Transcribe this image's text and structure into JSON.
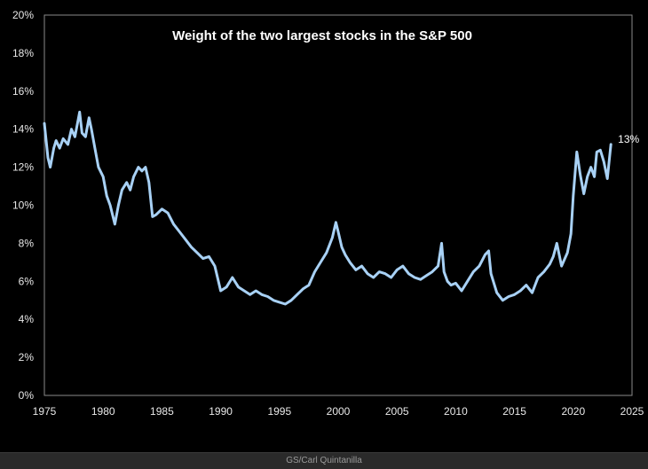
{
  "source_credit": "GS/Carl Quintanilla",
  "colors": {
    "background": "#000000",
    "plot_border": "#8a8a8a",
    "series_line": "#a8d1f5",
    "text": "#ffffff"
  },
  "chart_data": {
    "type": "line",
    "title": "Weight of the two largest stocks in the S&P 500",
    "xlabel": "",
    "ylabel": "",
    "xlim": [
      1975,
      2025
    ],
    "ylim": [
      0,
      20
    ],
    "x_ticks": [
      "1975",
      "1980",
      "1985",
      "1990",
      "1995",
      "2000",
      "2005",
      "2010",
      "2015",
      "2020",
      "2025"
    ],
    "y_ticks": [
      "0%",
      "2%",
      "4%",
      "6%",
      "8%",
      "10%",
      "12%",
      "14%",
      "16%",
      "18%",
      "20%"
    ],
    "grid": false,
    "end_annotation": "13%",
    "series": [
      {
        "x": [
          1975.0,
          1975.3,
          1975.5,
          1975.8,
          1976.0,
          1976.3,
          1976.6,
          1977.0,
          1977.3,
          1977.6,
          1978.0,
          1978.2,
          1978.5,
          1978.8,
          1979.0,
          1979.3,
          1979.6,
          1980.0,
          1980.3,
          1980.6,
          1981.0,
          1981.3,
          1981.6,
          1982.0,
          1982.3,
          1982.6,
          1983.0,
          1983.3,
          1983.6,
          1983.9,
          1984.2,
          1984.5,
          1985.0,
          1985.5,
          1986.0,
          1986.5,
          1987.0,
          1987.5,
          1988.0,
          1988.5,
          1989.0,
          1989.5,
          1990.0,
          1990.5,
          1991.0,
          1991.5,
          1992.0,
          1992.5,
          1993.0,
          1993.5,
          1994.0,
          1994.5,
          1995.0,
          1995.5,
          1996.0,
          1996.5,
          1997.0,
          1997.5,
          1998.0,
          1998.5,
          1999.0,
          1999.5,
          1999.8,
          2000.0,
          2000.3,
          2000.6,
          2001.0,
          2001.5,
          2002.0,
          2002.5,
          2003.0,
          2003.5,
          2004.0,
          2004.5,
          2005.0,
          2005.5,
          2006.0,
          2006.5,
          2007.0,
          2007.5,
          2008.0,
          2008.5,
          2008.8,
          2009.0,
          2009.3,
          2009.6,
          2010.0,
          2010.5,
          2011.0,
          2011.5,
          2012.0,
          2012.5,
          2012.8,
          2013.0,
          2013.5,
          2014.0,
          2014.5,
          2015.0,
          2015.5,
          2016.0,
          2016.5,
          2017.0,
          2017.5,
          2018.0,
          2018.3,
          2018.6,
          2019.0,
          2019.5,
          2019.8,
          2020.0,
          2020.3,
          2020.6,
          2020.9,
          2021.2,
          2021.5,
          2021.8,
          2022.0,
          2022.3,
          2022.6,
          2022.9,
          2023.2
        ],
        "y": [
          14.3,
          12.5,
          12.0,
          13.0,
          13.4,
          13.0,
          13.5,
          13.2,
          14.0,
          13.6,
          14.9,
          13.8,
          13.6,
          14.6,
          14.0,
          13.0,
          12.0,
          11.5,
          10.5,
          10.0,
          9.0,
          10.0,
          10.8,
          11.2,
          10.8,
          11.5,
          12.0,
          11.8,
          12.0,
          11.2,
          9.4,
          9.5,
          9.8,
          9.6,
          9.0,
          8.6,
          8.2,
          7.8,
          7.5,
          7.2,
          7.3,
          6.8,
          5.5,
          5.7,
          6.2,
          5.7,
          5.5,
          5.3,
          5.5,
          5.3,
          5.2,
          5.0,
          4.9,
          4.8,
          5.0,
          5.3,
          5.6,
          5.8,
          6.5,
          7.0,
          7.5,
          8.3,
          9.1,
          8.6,
          7.8,
          7.4,
          7.0,
          6.6,
          6.8,
          6.4,
          6.2,
          6.5,
          6.4,
          6.2,
          6.6,
          6.8,
          6.4,
          6.2,
          6.1,
          6.3,
          6.5,
          6.8,
          8.0,
          6.5,
          6.0,
          5.8,
          5.9,
          5.5,
          6.0,
          6.5,
          6.8,
          7.4,
          7.6,
          6.4,
          5.4,
          5.0,
          5.2,
          5.3,
          5.5,
          5.8,
          5.4,
          6.2,
          6.5,
          6.9,
          7.3,
          8.0,
          6.8,
          7.5,
          8.5,
          10.5,
          12.8,
          11.6,
          10.6,
          11.5,
          12.0,
          11.5,
          12.8,
          12.9,
          12.3,
          11.4,
          13.2
        ]
      }
    ]
  }
}
